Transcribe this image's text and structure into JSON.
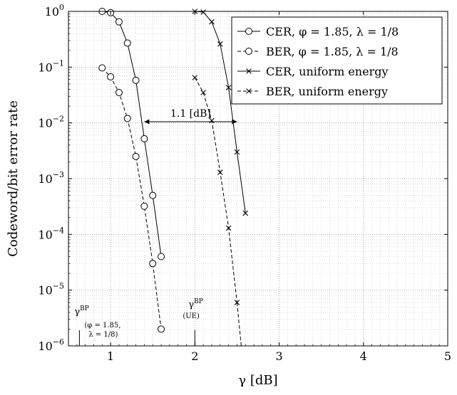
{
  "chart_data": {
    "type": "line",
    "xlabel": "γ [dB]",
    "ylabel": "Codeword/bit error rate",
    "xlim": [
      0.5,
      5
    ],
    "ylim_log10": [
      -6,
      0
    ],
    "yscale": "log",
    "grid": "major and minor, dotted",
    "legend_position": "top-right",
    "x_ticks": [
      "1",
      "2",
      "3",
      "4",
      "5"
    ],
    "y_ticks": [
      {
        "base": "10",
        "exp": "0",
        "value": 0
      },
      {
        "base": "10",
        "exp": "−1",
        "value": -1
      },
      {
        "base": "10",
        "exp": "−2",
        "value": -2
      },
      {
        "base": "10",
        "exp": "−3",
        "value": -3
      },
      {
        "base": "10",
        "exp": "−4",
        "value": -4
      },
      {
        "base": "10",
        "exp": "−5",
        "value": -5
      },
      {
        "base": "10",
        "exp": "−6",
        "value": -6
      }
    ],
    "series": [
      {
        "name": "CER, φ = 1.85, λ = 1/8",
        "marker": "circle",
        "dash": "solid",
        "x": [
          0.9,
          1.0,
          1.1,
          1.2,
          1.3,
          1.4,
          1.5,
          1.6
        ],
        "y": [
          1.0,
          0.95,
          0.65,
          0.27,
          0.058,
          0.0052,
          0.0005,
          4e-05
        ]
      },
      {
        "name": "BER, φ = 1.85, λ = 1/8",
        "marker": "circle",
        "dash": "dashed",
        "x": [
          0.9,
          1.0,
          1.1,
          1.2,
          1.3,
          1.4,
          1.5,
          1.6
        ],
        "y": [
          0.097,
          0.067,
          0.035,
          0.012,
          0.0025,
          0.00032,
          3e-05,
          2e-06
        ]
      },
      {
        "name": "CER, uniform energy",
        "marker": "x",
        "dash": "solid",
        "x": [
          2.0,
          2.1,
          2.2,
          2.3,
          2.4,
          2.5,
          2.6
        ],
        "y": [
          1.0,
          0.97,
          0.65,
          0.26,
          0.043,
          0.003,
          0.00024
        ]
      },
      {
        "name": "BER, uniform energy",
        "marker": "x",
        "dash": "dashed",
        "x": [
          2.0,
          2.1,
          2.2,
          2.3,
          2.4,
          2.5
        ],
        "y": [
          0.065,
          0.035,
          0.011,
          0.0013,
          0.00013,
          6e-06
        ]
      }
    ],
    "annotations": {
      "gap": {
        "label": "1.1 [dB]",
        "x_from": 1.4,
        "x_to": 2.5,
        "y": 0.0105
      },
      "threshold_opt": {
        "symbol": "γ",
        "sup": "BP",
        "line1": "(φ = 1.85,",
        "line2": "λ = 1/8)",
        "x": 0.63
      },
      "threshold_ue": {
        "symbol": "γ",
        "sup": "BP",
        "sub": "(UE)",
        "x": 2.0
      }
    }
  }
}
